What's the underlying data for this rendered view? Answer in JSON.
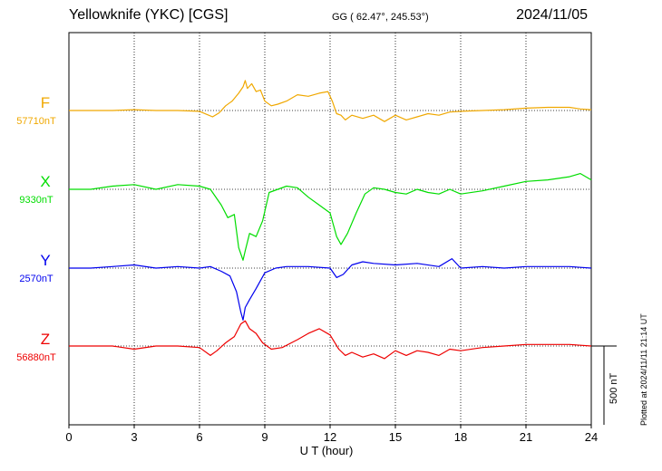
{
  "header": {
    "station": "Yellowknife (YKC)  [CGS]",
    "coords": "GG ( 62.47°, 245.53°)",
    "date": "2024/11/05"
  },
  "footer": {
    "plotted": "Plotted at 2024/11/11 21:14 UT",
    "scale": "500 nT"
  },
  "chart_data": {
    "type": "line",
    "xlabel": "U T (hour)",
    "xlim": [
      0,
      24
    ],
    "xticks": [
      0,
      3,
      6,
      9,
      12,
      15,
      18,
      21,
      24
    ],
    "scale_bar_nT": 500,
    "grid": true,
    "series": [
      {
        "name": "F",
        "baseline_label": "57710nT",
        "color": "#f0a800",
        "x": [
          0,
          1,
          2,
          3,
          4,
          5,
          6,
          6.6,
          6.9,
          7.2,
          7.5,
          7.8,
          8.0,
          8.1,
          8.2,
          8.4,
          8.6,
          8.8,
          9.0,
          9.3,
          9.6,
          10,
          10.5,
          11,
          11.5,
          11.9,
          12.1,
          12.3,
          12.5,
          12.7,
          13,
          13.5,
          14,
          14.5,
          15,
          15.5,
          16,
          16.5,
          17,
          17.5,
          18,
          19,
          20,
          21,
          22,
          23,
          23.5,
          24
        ],
        "values": [
          0,
          0,
          0,
          5,
          0,
          0,
          -5,
          -40,
          -15,
          30,
          60,
          110,
          150,
          190,
          140,
          170,
          120,
          130,
          60,
          30,
          40,
          60,
          100,
          90,
          110,
          120,
          60,
          -20,
          -30,
          -60,
          -30,
          -50,
          -30,
          -70,
          -30,
          -60,
          -40,
          -20,
          -30,
          -10,
          -5,
          0,
          5,
          15,
          20,
          20,
          10,
          5
        ]
      },
      {
        "name": "X",
        "baseline_label": "9330nT",
        "color": "#00dd00",
        "x": [
          0,
          1,
          2,
          3,
          4,
          5,
          6,
          6.5,
          7.0,
          7.3,
          7.6,
          7.8,
          8.0,
          8.1,
          8.3,
          8.6,
          8.9,
          9.2,
          9.6,
          10,
          10.5,
          11,
          11.5,
          12,
          12.3,
          12.5,
          12.8,
          13.2,
          13.6,
          14,
          14.5,
          15,
          15.5,
          16,
          16.5,
          17,
          17.5,
          18,
          19,
          20,
          21,
          22,
          23,
          23.5,
          24
        ],
        "values": [
          0,
          0,
          20,
          30,
          0,
          30,
          20,
          0,
          -100,
          -180,
          -160,
          -370,
          -450,
          -390,
          -280,
          -300,
          -200,
          -20,
          0,
          20,
          10,
          -50,
          -100,
          -150,
          -300,
          -350,
          -280,
          -150,
          -30,
          10,
          0,
          -20,
          -30,
          0,
          -20,
          -30,
          0,
          -30,
          -10,
          20,
          50,
          60,
          80,
          100,
          60
        ]
      },
      {
        "name": "Y",
        "baseline_label": "2570nT",
        "color": "#0000ee",
        "x": [
          0,
          1,
          2,
          3,
          4,
          5,
          6,
          6.5,
          7.0,
          7.4,
          7.7,
          7.9,
          8.0,
          8.1,
          8.3,
          8.6,
          9.0,
          9.5,
          10,
          11,
          12,
          12.3,
          12.6,
          13,
          13.5,
          14,
          15,
          16,
          17,
          17.6,
          18,
          19,
          20,
          21,
          22,
          23,
          24
        ],
        "values": [
          0,
          0,
          10,
          20,
          0,
          10,
          0,
          10,
          -20,
          -50,
          -150,
          -280,
          -330,
          -250,
          -200,
          -130,
          -30,
          0,
          10,
          10,
          0,
          -60,
          -40,
          20,
          40,
          30,
          20,
          30,
          10,
          60,
          0,
          10,
          0,
          10,
          10,
          10,
          0
        ]
      },
      {
        "name": "Z",
        "baseline_label": "56880nT",
        "color": "#ee0000",
        "x": [
          0,
          1,
          2,
          3,
          4,
          5,
          6,
          6.5,
          6.8,
          7.2,
          7.6,
          7.9,
          8.1,
          8.3,
          8.6,
          8.9,
          9.3,
          9.8,
          10.5,
          11,
          11.5,
          12,
          12.4,
          12.7,
          13,
          13.5,
          14,
          14.5,
          15,
          15.5,
          16,
          16.5,
          17,
          17.5,
          18,
          19,
          20,
          21,
          22,
          23,
          24
        ],
        "values": [
          0,
          0,
          0,
          -20,
          0,
          0,
          -10,
          -60,
          -30,
          20,
          60,
          140,
          160,
          110,
          80,
          20,
          -20,
          -10,
          40,
          80,
          110,
          70,
          -20,
          -60,
          -40,
          -70,
          -50,
          -80,
          -30,
          -60,
          -30,
          -40,
          -60,
          -20,
          -30,
          -10,
          0,
          10,
          10,
          10,
          0
        ]
      }
    ]
  }
}
